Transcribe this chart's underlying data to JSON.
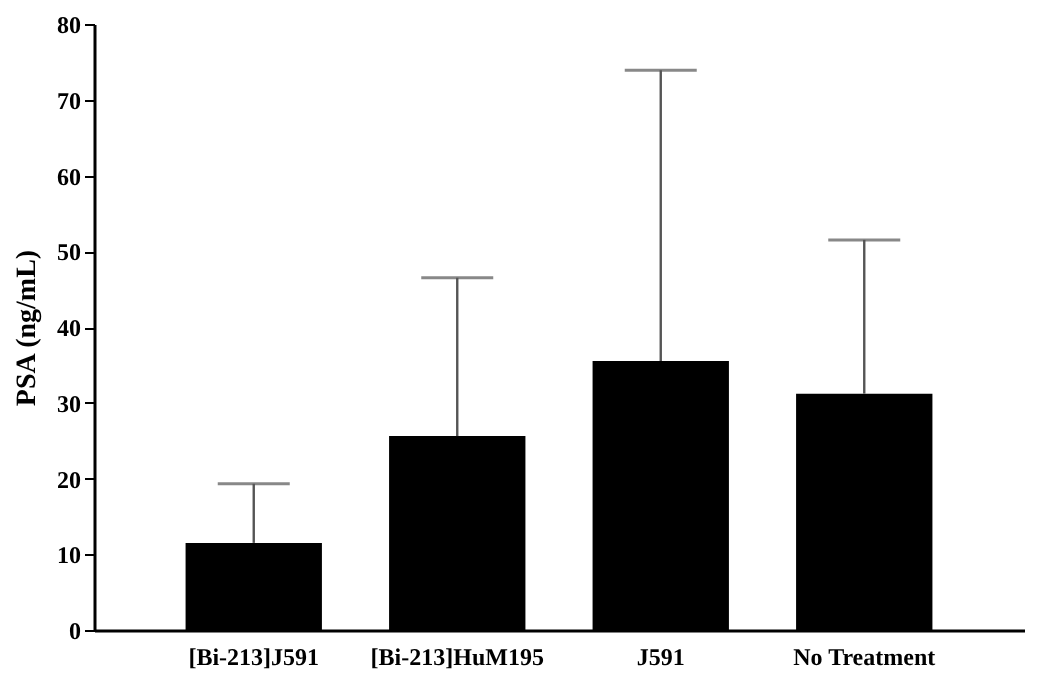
{
  "chart_data": {
    "type": "bar",
    "ylabel": "PSA (ng/mL)",
    "categories": [
      "[Bi-213]J591",
      "[Bi-213]HuM195",
      "J591",
      "No Treatment"
    ],
    "values": [
      11.5,
      25.6,
      35.5,
      31.2
    ],
    "errors": [
      [
        11.5,
        19.3
      ],
      [
        25.6,
        46.5
      ],
      [
        35.5,
        73.9
      ],
      [
        31.2,
        51.5
      ]
    ],
    "color": "#000000",
    "ylim": [
      0,
      80
    ],
    "yticks": [
      0,
      10,
      20,
      30,
      40,
      50,
      60,
      70,
      80
    ],
    "grid": false
  }
}
